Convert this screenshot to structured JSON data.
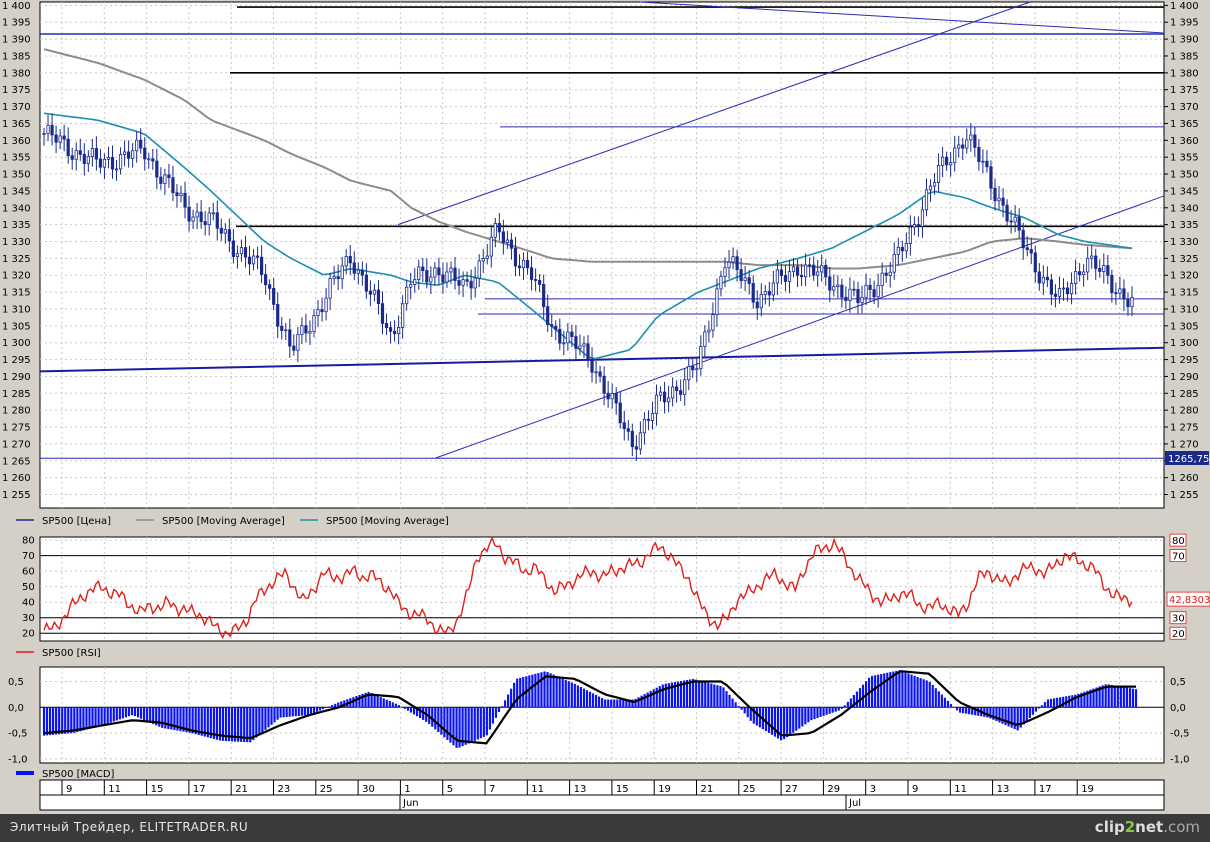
{
  "footer": {
    "left_text": "Элитный Трейдер, ELITETRADER.RU",
    "brand_a": "clip",
    "brand_b": "2",
    "brand_c": "net",
    "brand_d": ".com"
  },
  "colors": {
    "price": "#1a2a8c",
    "ma_long": "#8c8c8c",
    "ma_short": "#1b8fb0",
    "rsi": "#e0201a",
    "macd_hist": "#0a14f0",
    "macd_signal": "#000000",
    "trend_blue": "#2a2ab8",
    "level_black": "#000000"
  },
  "chart_data": [
    {
      "type": "candlestick",
      "panel": "price",
      "yticks": [
        "1 400",
        "1 395",
        "1 390",
        "1 385",
        "1 380",
        "1 375",
        "1 370",
        "1 365",
        "1 360",
        "1 355",
        "1 350",
        "1 345",
        "1 340",
        "1 335",
        "1 330",
        "1 325",
        "1 320",
        "1 315",
        "1 310",
        "1 305",
        "1 300",
        "1 295",
        "1 290",
        "1 285",
        "1 280",
        "1 275",
        "1 270",
        "1 265",
        "1 260",
        "1 255"
      ],
      "ylim": [
        1251,
        1401
      ],
      "legend": [
        {
          "label": "SP500 [Цена]",
          "color": "#1a2a8c"
        },
        {
          "label": "SP500 [Moving Average]",
          "color": "#8c8c8c"
        },
        {
          "label": "SP500 [Moving Average]",
          "color": "#1b8fb0"
        }
      ],
      "current_label": "1265,75",
      "x": [
        0,
        8,
        15,
        21,
        25,
        33,
        37,
        42,
        46,
        52,
        55,
        59,
        63,
        68,
        73,
        76,
        82,
        88,
        92,
        98,
        102,
        107,
        113,
        118,
        122,
        128,
        133,
        138,
        142,
        147,
        152,
        156,
        163
      ],
      "close": [
        1362,
        1353,
        1357,
        1340,
        1336,
        1320,
        1297,
        1313,
        1326,
        1302,
        1318,
        1322,
        1316,
        1333,
        1320,
        1305,
        1295,
        1270,
        1282,
        1293,
        1325,
        1313,
        1323,
        1318,
        1312,
        1325,
        1347,
        1362,
        1347,
        1328,
        1312,
        1325,
        1312
      ],
      "ma_short": [
        1368,
        1366,
        1362,
        1352,
        1345,
        1330,
        1325,
        1320,
        1322,
        1320,
        1318,
        1317,
        1320,
        1318,
        1310,
        1305,
        1295,
        1298,
        1308,
        1315,
        1318,
        1322,
        1325,
        1328,
        1332,
        1338,
        1345,
        1343,
        1340,
        1337,
        1332,
        1330,
        1328
      ],
      "ma_long": [
        1387,
        1383,
        1378,
        1372,
        1366,
        1360,
        1356,
        1352,
        1348,
        1345,
        1340,
        1336,
        1333,
        1330,
        1327,
        1325,
        1324,
        1324,
        1324,
        1324,
        1324,
        1323,
        1323,
        1322,
        1322,
        1323,
        1325,
        1327,
        1330,
        1331,
        1330,
        1329,
        1328
      ],
      "levels": [
        {
          "y": 1391.5,
          "style": "blue"
        },
        {
          "y": 1380,
          "style": "black"
        },
        {
          "y": 1364,
          "style": "blue-thin"
        },
        {
          "y": 1334.5,
          "style": "black"
        },
        {
          "y": 1313,
          "style": "blue-thin"
        },
        {
          "y": 1308.5,
          "style": "blue-thin"
        },
        {
          "y": 1265.75,
          "style": "blue-thin"
        }
      ]
    },
    {
      "type": "line",
      "panel": "rsi",
      "legend": "SP500 [RSI]",
      "yticks": [
        "80",
        "70",
        "60",
        "50",
        "40",
        "30",
        "20"
      ],
      "ylim": [
        15,
        82
      ],
      "levels": [
        70,
        30,
        20
      ],
      "right_labels": [
        "80",
        "70",
        "30",
        "20"
      ],
      "current_label": "42,83030",
      "x": [
        0,
        10,
        20,
        30,
        40,
        50,
        60,
        70,
        80,
        90,
        100,
        110,
        120,
        130,
        140,
        150,
        160,
        170,
        180,
        190,
        200,
        210,
        220,
        230,
        240,
        250,
        260,
        270,
        280,
        290,
        300,
        310,
        320,
        330,
        340,
        350,
        360,
        370,
        380,
        390,
        400,
        410,
        420,
        430,
        440,
        450,
        460,
        470,
        480,
        490,
        500,
        510,
        520,
        530,
        540,
        550,
        560,
        570,
        580,
        590,
        600,
        610,
        620,
        630,
        640,
        650,
        660,
        670,
        680,
        690,
        700,
        710,
        720,
        730,
        740,
        750,
        760,
        770,
        780,
        790,
        800,
        810,
        820,
        830,
        840,
        850,
        860,
        870,
        880,
        890,
        900,
        910,
        920,
        930,
        940,
        950,
        960,
        970,
        980,
        990,
        1000,
        1010,
        1020,
        1030,
        1040,
        1050,
        1060,
        1070,
        1080,
        1090,
        1100,
        1110,
        1120,
        1130
      ],
      "values": [
        22,
        23,
        30,
        38,
        44,
        48,
        50,
        46,
        44,
        38,
        33,
        38,
        36,
        40,
        36,
        34,
        33,
        28,
        23,
        20,
        22,
        28,
        42,
        48,
        55,
        58,
        50,
        40,
        48,
        60,
        55,
        57,
        60,
        56,
        58,
        52,
        48,
        37,
        33,
        32,
        28,
        22,
        20,
        30,
        45,
        70,
        75,
        78,
        68,
        65,
        60,
        62,
        55,
        47,
        50,
        54,
        58,
        60,
        56,
        60,
        62,
        64,
        66,
        72,
        76,
        70,
        62,
        55,
        40,
        30,
        25,
        30,
        42,
        45,
        50,
        55,
        58,
        52,
        48,
        62,
        72,
        75,
        78,
        70,
        60,
        52,
        45,
        40,
        42,
        46,
        44,
        38,
        36,
        40,
        35,
        32,
        40,
        55,
        60,
        55,
        52,
        58,
        62,
        62,
        58,
        64,
        70,
        68,
        65,
        62,
        52,
        45,
        42,
        42
      ]
    },
    {
      "type": "bar",
      "panel": "macd",
      "legend": "SP500 [MACD]",
      "yticks": [
        "0,5",
        "0,0",
        "-0,5",
        "-1,0"
      ],
      "ylim": [
        -1.08,
        0.78
      ],
      "x": [
        0,
        30,
        60,
        90,
        120,
        150,
        180,
        210,
        240,
        270,
        300,
        330,
        360,
        390,
        420,
        450,
        480,
        510,
        540,
        570,
        600,
        630,
        660,
        690,
        720,
        750,
        780,
        810,
        840,
        870,
        900,
        930,
        960,
        990,
        1020,
        1050,
        1080,
        1110
      ],
      "histogram": [
        -0.55,
        -0.5,
        -0.35,
        -0.15,
        -0.4,
        -0.5,
        -0.65,
        -0.68,
        -0.2,
        -0.15,
        0.1,
        0.3,
        0.05,
        -0.3,
        -0.8,
        -0.55,
        0.55,
        0.7,
        0.45,
        0.15,
        0.15,
        0.45,
        0.55,
        0.4,
        -0.3,
        -0.65,
        -0.25,
        -0.05,
        0.6,
        0.72,
        0.5,
        -0.1,
        -0.2,
        -0.45,
        0.15,
        0.25,
        0.45,
        0.35
      ],
      "signal": [
        -0.5,
        -0.45,
        -0.35,
        -0.25,
        -0.3,
        -0.45,
        -0.55,
        -0.6,
        -0.35,
        -0.15,
        0.0,
        0.25,
        0.2,
        -0.15,
        -0.65,
        -0.7,
        0.15,
        0.6,
        0.55,
        0.25,
        0.1,
        0.35,
        0.5,
        0.5,
        -0.05,
        -0.55,
        -0.5,
        -0.15,
        0.3,
        0.7,
        0.65,
        0.1,
        -0.15,
        -0.35,
        -0.1,
        0.2,
        0.4,
        0.4
      ]
    },
    {
      "type": "time_axis",
      "ticks": [
        "9",
        "11",
        "15",
        "17",
        "21",
        "23",
        "25",
        "30",
        "1",
        "5",
        "7",
        "11",
        "13",
        "15",
        "19",
        "21",
        "25",
        "27",
        "29",
        "3",
        "9",
        "11",
        "13",
        "17",
        "19"
      ],
      "months": [
        "Jun",
        "Jul"
      ]
    }
  ]
}
